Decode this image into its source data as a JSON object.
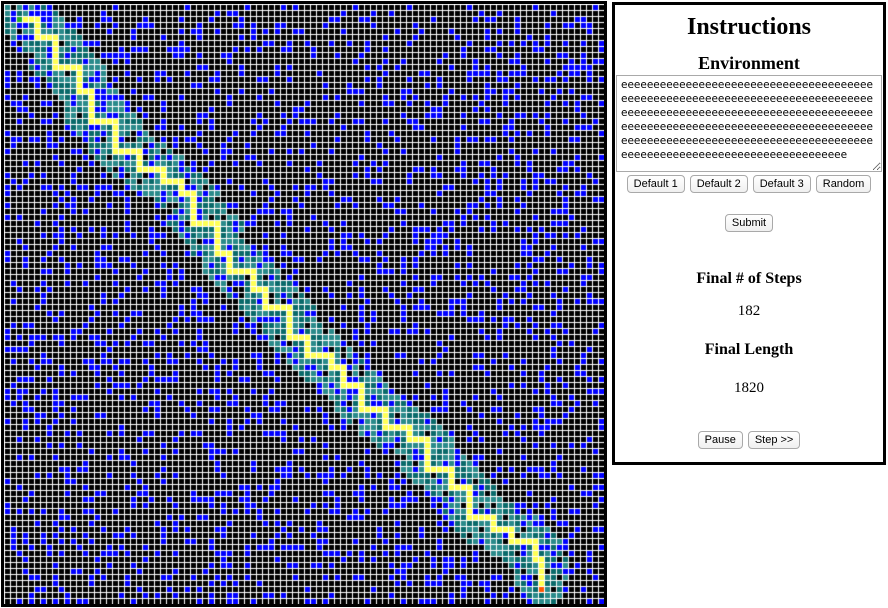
{
  "grid": {
    "columns": 100,
    "rows": 100,
    "colors": {
      "empty": "#000000",
      "obstacle": "#0000ff",
      "explored": "#0a6a6a",
      "explored_bright": "#2a8a8a",
      "path": "#ffff55",
      "start": "#22aa22",
      "end": "#ff5500",
      "grid_line": "#ffffff"
    }
  },
  "panel": {
    "title": "Instructions",
    "environment_heading": "Environment",
    "environment_text": "eeeeeeeeeeeeeeeeeeeeeeeeeeeeeeeeeeeeeeeeeeeeeeeeeeeeeeeeeeeeeeeeeeeeeeeeeeeeeeeeeeeeeeeeeeeeeeeeeeeeeeeeeeeeeeeeeeeeeeeeeeeeeeeeeeeeeeeeeeeeeeeeeeeeeeeeeeeeeeeeeeeeeeeeeeeeeeeeeeeeeeeeeeeeeeeeeeeeeeeeeeeeeeeeeeeeeeeeeeeeeeeeeeeeee",
    "default_buttons": [
      "Default 1",
      "Default 2",
      "Default 3",
      "Random"
    ],
    "submit_label": "Submit",
    "steps_heading": "Final # of Steps",
    "steps_value": "182",
    "length_heading": "Final Length",
    "length_value": "1820",
    "pause_label": "Pause",
    "step_label": "Step >>"
  }
}
